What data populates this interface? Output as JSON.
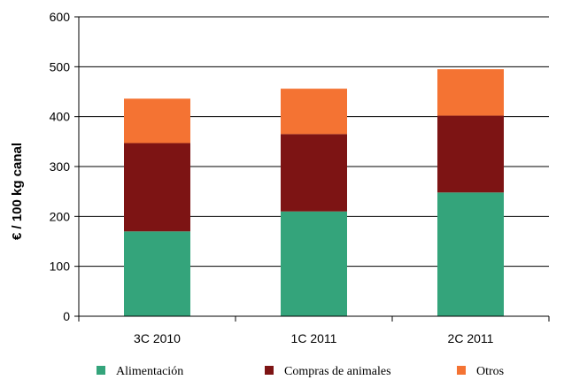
{
  "chart_data": {
    "type": "bar",
    "stacked": true,
    "title": "",
    "xlabel": "",
    "ylabel": "€ / 100 kg canal",
    "ylim": [
      0,
      600
    ],
    "yticks": [
      "0",
      "100",
      "200",
      "300",
      "400",
      "500",
      "600"
    ],
    "categories": [
      "3C 2010",
      "1C 2011",
      "2C 2011"
    ],
    "grid": "horizontal",
    "legend_position": "bottom",
    "series": [
      {
        "name": "Alimentación",
        "color": "#34A47B",
        "values": [
          170,
          210,
          248
        ]
      },
      {
        "name": "Compras de animales",
        "color": "#7D1414",
        "values": [
          177,
          155,
          154
        ]
      },
      {
        "name": "Otros",
        "color": "#F47333",
        "values": [
          89,
          91,
          93
        ]
      }
    ]
  }
}
